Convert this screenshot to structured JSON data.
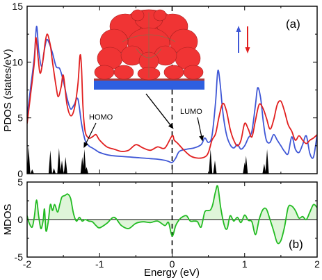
{
  "colors": {
    "spin_up": "#3f57d6",
    "spin_down": "#e11f1f",
    "mdos_line": "#22bb22",
    "mdos_fill": "#dff5d9",
    "molecule": "#f03434",
    "substrate": "#2e5fe0",
    "stick": "#000000"
  },
  "chart_data": [
    {
      "type": "line",
      "panel_label": "(a)",
      "ylabel": "PDOS (states/eV)",
      "xlim": [
        -2,
        2
      ],
      "ylim": [
        0,
        15
      ],
      "xticks": [
        "-2",
        "-1",
        "0",
        "1",
        "2"
      ],
      "yticks": [
        "0",
        "5",
        "10",
        "15"
      ],
      "grid": false,
      "legend": {
        "placement": "top-right",
        "markers": [
          "up-arrow-blue",
          "down-arrow-red"
        ]
      },
      "vline_x": 0,
      "inset": "molecule-on-substrate-isosurface",
      "series": [
        {
          "color": "spin_up",
          "x": [
            -2.0,
            -1.95,
            -1.9,
            -1.87,
            -1.84,
            -1.8,
            -1.77,
            -1.73,
            -1.69,
            -1.65,
            -1.6,
            -1.55,
            -1.5,
            -1.45,
            -1.4,
            -1.35,
            -1.3,
            -1.25,
            -1.2,
            -1.15,
            -1.1,
            -1.05,
            -1.0,
            -0.9,
            -0.8,
            -0.7,
            -0.6,
            -0.5,
            -0.4,
            -0.3,
            -0.2,
            -0.1,
            -0.05,
            0.0,
            0.05,
            0.1,
            0.2,
            0.3,
            0.4,
            0.45,
            0.5,
            0.55,
            0.6,
            0.63,
            0.66,
            0.7,
            0.75,
            0.8,
            0.85,
            0.9,
            0.95,
            1.0,
            1.05,
            1.1,
            1.15,
            1.18,
            1.22,
            1.26,
            1.3,
            1.35,
            1.4,
            1.45,
            1.5,
            1.55,
            1.6,
            1.65,
            1.7,
            1.75,
            1.8,
            1.85,
            1.9,
            1.95,
            2.0
          ],
          "y": [
            5.2,
            7.8,
            10.5,
            13.2,
            11.0,
            9.6,
            10.8,
            12.0,
            11.6,
            10.8,
            9.6,
            9.4,
            8.3,
            6.8,
            5.8,
            6.2,
            6.7,
            4.5,
            3.0,
            2.5,
            2.3,
            2.1,
            1.9,
            1.7,
            1.6,
            1.55,
            1.5,
            1.45,
            1.4,
            1.35,
            1.3,
            1.2,
            1.1,
            1.0,
            1.4,
            2.0,
            2.2,
            2.3,
            2.6,
            3.2,
            2.8,
            3.4,
            6.5,
            9.2,
            8.2,
            5.5,
            3.5,
            2.6,
            2.3,
            2.6,
            2.2,
            2.5,
            3.2,
            3.8,
            6.2,
            7.7,
            6.8,
            4.5,
            3.0,
            2.8,
            3.5,
            3.0,
            2.5,
            2.0,
            1.8,
            3.3,
            2.2,
            1.9,
            2.6,
            3.4,
            1.8,
            1.5,
            3.5
          ]
        },
        {
          "color": "spin_down",
          "x": [
            -2.0,
            -1.95,
            -1.9,
            -1.88,
            -1.85,
            -1.82,
            -1.78,
            -1.75,
            -1.72,
            -1.68,
            -1.65,
            -1.6,
            -1.57,
            -1.53,
            -1.5,
            -1.45,
            -1.4,
            -1.35,
            -1.3,
            -1.27,
            -1.25,
            -1.23,
            -1.2,
            -1.15,
            -1.1,
            -1.05,
            -1.0,
            -0.9,
            -0.8,
            -0.7,
            -0.6,
            -0.5,
            -0.4,
            -0.3,
            -0.2,
            -0.1,
            0.0,
            0.03,
            0.08,
            0.15,
            0.25,
            0.35,
            0.45,
            0.5,
            0.55,
            0.6,
            0.65,
            0.7,
            0.75,
            0.8,
            0.85,
            0.9,
            0.95,
            1.0,
            1.05,
            1.1,
            1.15,
            1.2,
            1.25,
            1.3,
            1.35,
            1.4,
            1.45,
            1.5,
            1.55,
            1.6,
            1.65,
            1.7,
            1.75,
            1.8,
            1.85,
            1.9,
            1.95,
            2.0
          ],
          "y": [
            4.5,
            7.2,
            10.0,
            12.2,
            10.5,
            9.0,
            10.2,
            11.8,
            12.5,
            11.5,
            10.0,
            7.8,
            6.9,
            7.8,
            8.8,
            6.2,
            5.2,
            5.8,
            8.0,
            10.6,
            9.5,
            6.0,
            3.8,
            3.2,
            3.3,
            3.5,
            3.0,
            2.4,
            2.2,
            2.0,
            2.1,
            2.6,
            2.3,
            2.1,
            2.4,
            2.3,
            3.4,
            3.0,
            2.7,
            2.2,
            1.6,
            1.4,
            1.5,
            1.9,
            3.0,
            3.6,
            5.2,
            6.3,
            5.6,
            4.0,
            3.0,
            2.5,
            3.0,
            4.5,
            4.0,
            3.3,
            4.8,
            6.2,
            5.9,
            5.0,
            4.0,
            4.8,
            6.2,
            6.5,
            5.6,
            4.4,
            3.8,
            3.0,
            3.4,
            3.0,
            2.7,
            3.0,
            3.2,
            3.5
          ]
        }
      ],
      "sticks": [
        {
          "x": -1.98,
          "y": 2.5
        },
        {
          "x": -1.93,
          "y": 0.4
        },
        {
          "x": -1.68,
          "y": 2.1
        },
        {
          "x": -1.63,
          "y": 0.5
        },
        {
          "x": -1.56,
          "y": 2.3
        },
        {
          "x": -1.52,
          "y": 1.2
        },
        {
          "x": -1.47,
          "y": 1.5
        },
        {
          "x": -1.24,
          "y": 1.5
        },
        {
          "x": -1.21,
          "y": 2.2
        },
        {
          "x": -1.18,
          "y": 0.6
        },
        {
          "x": 0.53,
          "y": 2.2
        },
        {
          "x": 0.59,
          "y": 1.2
        },
        {
          "x": 1.0,
          "y": 1.0
        },
        {
          "x": 1.02,
          "y": 1.6
        },
        {
          "x": 1.27,
          "y": 0.9
        },
        {
          "x": 1.31,
          "y": 2.2
        }
      ],
      "annotations": [
        {
          "text": "HOMO",
          "arrow_to": [
            -1.22,
            2.3
          ]
        },
        {
          "text": "LUMO",
          "arrow_to": [
            0.42,
            2.9
          ]
        }
      ]
    },
    {
      "type": "area",
      "panel_label": "(b)",
      "xlabel": "Energy (eV)",
      "ylabel": "MDOS",
      "xlim": [
        -2,
        2
      ],
      "ylim": [
        -5,
        5
      ],
      "xticks": [
        "-2",
        "-1",
        "0",
        "1",
        "2"
      ],
      "yticks": [
        "-5",
        "0",
        "5"
      ],
      "grid": false,
      "vline_x": 0,
      "series": [
        {
          "color": "mdos_line",
          "fill": "mdos_fill",
          "x": [
            -2.0,
            -1.97,
            -1.93,
            -1.9,
            -1.87,
            -1.84,
            -1.81,
            -1.78,
            -1.76,
            -1.74,
            -1.71,
            -1.68,
            -1.65,
            -1.62,
            -1.58,
            -1.55,
            -1.52,
            -1.48,
            -1.44,
            -1.4,
            -1.36,
            -1.32,
            -1.28,
            -1.24,
            -1.2,
            -1.15,
            -1.1,
            -1.05,
            -1.0,
            -0.9,
            -0.8,
            -0.7,
            -0.6,
            -0.5,
            -0.4,
            -0.3,
            -0.2,
            -0.1,
            -0.05,
            0.0,
            0.05,
            0.1,
            0.15,
            0.2,
            0.25,
            0.3,
            0.35,
            0.4,
            0.45,
            0.5,
            0.53,
            0.56,
            0.6,
            0.63,
            0.67,
            0.72,
            0.76,
            0.8,
            0.85,
            0.9,
            0.95,
            1.0,
            1.05,
            1.1,
            1.15,
            1.2,
            1.25,
            1.3,
            1.35,
            1.4,
            1.45,
            1.5,
            1.55,
            1.6,
            1.65,
            1.7,
            1.75,
            1.8,
            1.85,
            1.9,
            1.95,
            2.0
          ],
          "y": [
            0.5,
            -0.5,
            -1.0,
            0.4,
            2.6,
            0.4,
            -1.2,
            -0.2,
            1.4,
            -1.5,
            -0.4,
            2.0,
            1.2,
            2.0,
            1.0,
            2.0,
            3.0,
            3.2,
            3.4,
            2.8,
            0.8,
            -0.2,
            0.3,
            -0.2,
            0.0,
            -0.2,
            -0.3,
            -0.8,
            -1.1,
            -0.5,
            0.3,
            -0.8,
            -1.2,
            -0.5,
            -0.3,
            -0.4,
            -0.2,
            -0.8,
            -0.4,
            -2.2,
            -0.8,
            0.0,
            0.4,
            0.5,
            -0.2,
            -0.2,
            -0.3,
            -1.0,
            1.0,
            1.2,
            1.3,
            2.0,
            3.8,
            4.4,
            1.6,
            -0.8,
            -1.2,
            0.5,
            -0.2,
            0.3,
            -0.4,
            0.6,
            -0.1,
            -0.3,
            -2.0,
            0.0,
            1.3,
            1.4,
            0.0,
            -1.5,
            -3.1,
            -2.8,
            -1.0,
            1.6,
            1.8,
            1.2,
            0.2,
            0.4,
            0.0,
            1.0,
            2.0,
            1.6
          ]
        }
      ]
    }
  ]
}
